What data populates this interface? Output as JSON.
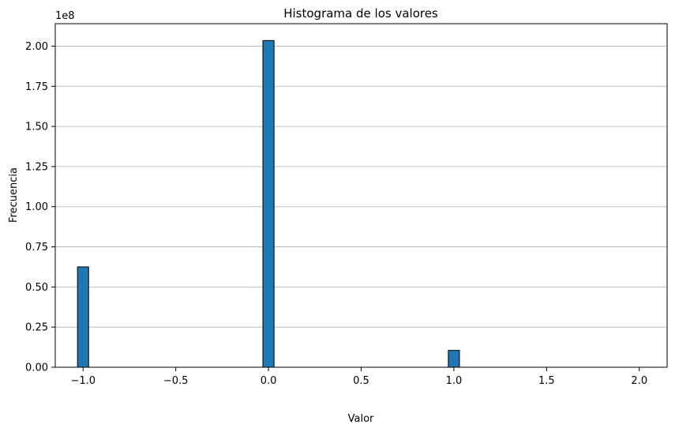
{
  "chart_data": {
    "type": "bar",
    "title": "Histograma de los valores",
    "xlabel": "Valor",
    "ylabel": "Frecuencia",
    "y_offset_text": "1e8",
    "xlim": [
      -1.15,
      2.15
    ],
    "ylim": [
      0,
      2.14
    ],
    "x_ticks": [
      -1.0,
      -0.5,
      0.0,
      0.5,
      1.0,
      1.5,
      2.0
    ],
    "x_tick_labels": [
      "−1.0",
      "−0.5",
      "0.0",
      "0.5",
      "1.0",
      "1.5",
      "2.0"
    ],
    "y_ticks": [
      0.0,
      0.25,
      0.5,
      0.75,
      1.0,
      1.25,
      1.5,
      1.75,
      2.0
    ],
    "y_tick_labels": [
      "0.00",
      "0.25",
      "0.50",
      "0.75",
      "1.00",
      "1.25",
      "1.50",
      "1.75",
      "2.00"
    ],
    "bin_width": 0.06,
    "bars": [
      {
        "x": -1.0,
        "value": 0.625
      },
      {
        "x": 0.0,
        "value": 2.035
      },
      {
        "x": 1.0,
        "value": 0.105
      }
    ],
    "grid": "y-only",
    "colors": {
      "bar_fill": "#1f77b4",
      "bar_edge": "#000000",
      "grid": "#b0b0b0"
    }
  }
}
